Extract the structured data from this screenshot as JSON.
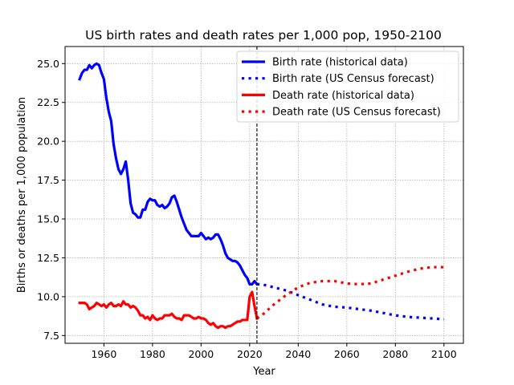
{
  "chart_data": {
    "type": "line",
    "title": "US birth rates and death rates per 1,000 pop, 1950-2100",
    "xlabel": "Year",
    "ylabel": "Births or deaths per 1,000 population",
    "xlim": [
      1944,
      2108
    ],
    "ylim": [
      7.0,
      26.1
    ],
    "xticks": [
      1960,
      1980,
      2000,
      2020,
      2040,
      2060,
      2080,
      2100
    ],
    "yticks": [
      7.5,
      10.0,
      12.5,
      15.0,
      17.5,
      20.0,
      22.5,
      25.0
    ],
    "ytick_labels": [
      "7.5",
      "10.0",
      "12.5",
      "15.0",
      "17.5",
      "20.0",
      "22.5",
      "25.0"
    ],
    "grid": true,
    "legend_position": "top-right",
    "vline_x": 2023,
    "series": [
      {
        "name": "Birth rate (historical data)",
        "color": "#0000ff",
        "style": "solid",
        "x": [
          1950,
          1951,
          1952,
          1953,
          1954,
          1955,
          1956,
          1957,
          1958,
          1959,
          1960,
          1961,
          1962,
          1963,
          1964,
          1965,
          1966,
          1967,
          1968,
          1969,
          1970,
          1971,
          1972,
          1973,
          1974,
          1975,
          1976,
          1977,
          1978,
          1979,
          1980,
          1981,
          1982,
          1983,
          1984,
          1985,
          1986,
          1987,
          1988,
          1989,
          1990,
          1991,
          1992,
          1993,
          1994,
          1995,
          1996,
          1997,
          1998,
          1999,
          2000,
          2001,
          2002,
          2003,
          2004,
          2005,
          2006,
          2007,
          2008,
          2009,
          2010,
          2011,
          2012,
          2013,
          2014,
          2015,
          2016,
          2017,
          2018,
          2019,
          2020,
          2021,
          2022,
          2023
        ],
        "values": [
          24.0,
          24.4,
          24.6,
          24.6,
          24.9,
          24.7,
          24.9,
          25.0,
          24.9,
          24.4,
          24.0,
          22.8,
          21.9,
          21.3,
          19.8,
          18.9,
          18.2,
          17.9,
          18.2,
          18.7,
          17.5,
          16.0,
          15.4,
          15.3,
          15.1,
          15.1,
          15.6,
          15.6,
          16.1,
          16.3,
          16.2,
          16.2,
          15.9,
          15.8,
          15.9,
          15.7,
          15.8,
          16.0,
          16.4,
          16.5,
          16.1,
          15.6,
          15.1,
          14.7,
          14.3,
          14.1,
          13.9,
          13.9,
          13.9,
          13.9,
          14.1,
          13.9,
          13.7,
          13.8,
          13.7,
          13.8,
          14.0,
          14.0,
          13.7,
          13.3,
          12.8,
          12.5,
          12.4,
          12.3,
          12.3,
          12.2,
          12.0,
          11.7,
          11.4,
          11.2,
          10.8,
          10.8,
          11.0,
          10.8
        ]
      },
      {
        "name": "Birth rate (US Census forecast)",
        "color": "#0000ff",
        "style": "dotted",
        "x": [
          2023,
          2025,
          2030,
          2035,
          2040,
          2045,
          2050,
          2055,
          2060,
          2065,
          2070,
          2075,
          2080,
          2085,
          2090,
          2095,
          2100
        ],
        "values": [
          10.8,
          10.8,
          10.6,
          10.4,
          10.1,
          9.8,
          9.5,
          9.35,
          9.3,
          9.2,
          9.1,
          8.95,
          8.8,
          8.7,
          8.65,
          8.6,
          8.55
        ]
      },
      {
        "name": "Death rate (historical data)",
        "color": "#ff0000",
        "style": "solid",
        "x": [
          1950,
          1951,
          1952,
          1953,
          1954,
          1955,
          1956,
          1957,
          1958,
          1959,
          1960,
          1961,
          1962,
          1963,
          1964,
          1965,
          1966,
          1967,
          1968,
          1969,
          1970,
          1971,
          1972,
          1973,
          1974,
          1975,
          1976,
          1977,
          1978,
          1979,
          1980,
          1981,
          1982,
          1983,
          1984,
          1985,
          1986,
          1987,
          1988,
          1989,
          1990,
          1991,
          1992,
          1993,
          1994,
          1995,
          1996,
          1997,
          1998,
          1999,
          2000,
          2001,
          2002,
          2003,
          2004,
          2005,
          2006,
          2007,
          2008,
          2009,
          2010,
          2011,
          2012,
          2013,
          2014,
          2015,
          2016,
          2017,
          2018,
          2019,
          2020,
          2021,
          2022,
          2023
        ],
        "values": [
          9.6,
          9.6,
          9.6,
          9.5,
          9.2,
          9.3,
          9.4,
          9.6,
          9.5,
          9.4,
          9.5,
          9.3,
          9.5,
          9.6,
          9.4,
          9.4,
          9.5,
          9.4,
          9.7,
          9.5,
          9.5,
          9.3,
          9.4,
          9.3,
          9.1,
          8.8,
          8.8,
          8.6,
          8.7,
          8.5,
          8.8,
          8.6,
          8.5,
          8.6,
          8.6,
          8.8,
          8.8,
          8.8,
          8.9,
          8.7,
          8.6,
          8.6,
          8.5,
          8.8,
          8.8,
          8.8,
          8.7,
          8.6,
          8.6,
          8.7,
          8.6,
          8.6,
          8.5,
          8.3,
          8.2,
          8.3,
          8.1,
          8.0,
          8.1,
          8.1,
          8.0,
          8.1,
          8.1,
          8.2,
          8.3,
          8.4,
          8.4,
          8.5,
          8.5,
          8.5,
          10.0,
          10.3,
          9.4,
          8.6
        ]
      },
      {
        "name": "Death rate (US Census forecast)",
        "color": "#ff0000",
        "style": "dotted",
        "x": [
          2023,
          2025,
          2030,
          2035,
          2040,
          2045,
          2050,
          2055,
          2060,
          2065,
          2070,
          2075,
          2080,
          2085,
          2090,
          2095,
          2100
        ],
        "values": [
          8.6,
          8.8,
          9.5,
          10.1,
          10.6,
          10.9,
          11.0,
          11.0,
          10.85,
          10.8,
          10.85,
          11.1,
          11.35,
          11.6,
          11.8,
          11.9,
          11.9
        ]
      }
    ]
  }
}
